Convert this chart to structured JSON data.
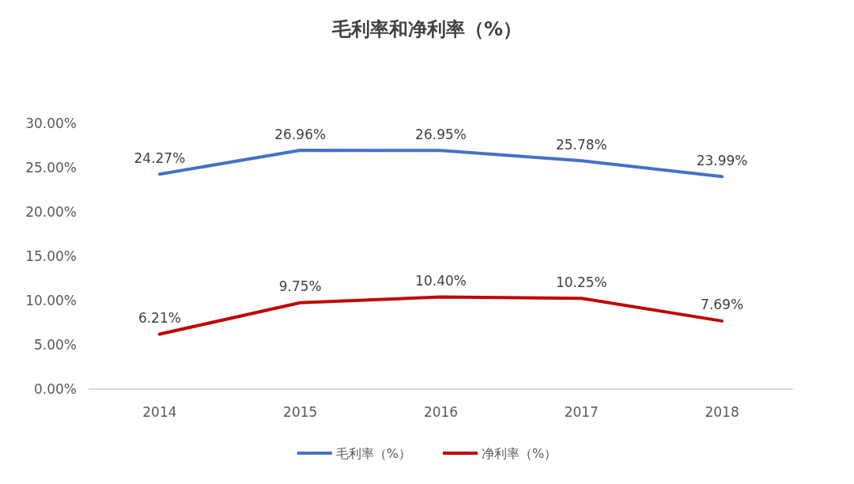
{
  "chart_data": {
    "type": "line",
    "title": "毛利率和净利率（%）",
    "categories": [
      "2014",
      "2015",
      "2016",
      "2017",
      "2018"
    ],
    "series": [
      {
        "name": "毛利率（%）",
        "color": "#4472c4",
        "values": [
          24.27,
          26.96,
          26.95,
          25.78,
          23.99
        ],
        "value_labels": [
          "24.27%",
          "26.96%",
          "26.95%",
          "25.78%",
          "23.99%"
        ]
      },
      {
        "name": "净利率（%）",
        "color": "#c00000",
        "values": [
          6.21,
          9.75,
          10.4,
          10.25,
          7.69
        ],
        "value_labels": [
          "6.21%",
          "9.75%",
          "10.40%",
          "10.25%",
          "7.69%"
        ]
      }
    ],
    "ylim": [
      0,
      30
    ],
    "yticks": [
      {
        "value": 0,
        "label": "0.00%"
      },
      {
        "value": 5,
        "label": "5.00%"
      },
      {
        "value": 10,
        "label": "10.00%"
      },
      {
        "value": 15,
        "label": "15.00%"
      },
      {
        "value": 20,
        "label": "20.00%"
      },
      {
        "value": 25,
        "label": "25.00%"
      },
      {
        "value": 30,
        "label": "30.00%"
      }
    ],
    "grid": false,
    "legend": "bottom",
    "marker": "none",
    "line_style": "solid"
  }
}
